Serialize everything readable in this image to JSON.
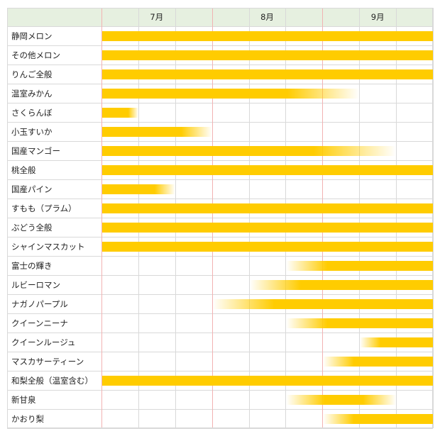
{
  "chart_data": {
    "type": "gantt",
    "title": "",
    "months": [
      "7月",
      "8月",
      "9月"
    ],
    "x_range_thirds": [
      0,
      9
    ],
    "bar_color": "#ffcc00",
    "header_color": "#e6f0e0",
    "grid_color": "#d9d9d9",
    "month_line_color": "#f2b3b3",
    "items": [
      {
        "name": "静岡メロン",
        "start": 0,
        "end": 9,
        "fade": "none"
      },
      {
        "name": "その他メロン",
        "start": 0,
        "end": 9,
        "fade": "none"
      },
      {
        "name": "りんご全般",
        "start": 0,
        "end": 9,
        "fade": "none"
      },
      {
        "name": "温室みかん",
        "start": 0,
        "end": 7,
        "fade": "end"
      },
      {
        "name": "さくらんぼ",
        "start": 0,
        "end": 1,
        "fade": "end"
      },
      {
        "name": "小玉すいか",
        "start": 0,
        "end": 3,
        "fade": "end"
      },
      {
        "name": "国産マンゴー",
        "start": 0,
        "end": 8,
        "fade": "end"
      },
      {
        "name": "桃全般",
        "start": 0,
        "end": 9,
        "fade": "none"
      },
      {
        "name": "国産パイン",
        "start": 0,
        "end": 2,
        "fade": "end"
      },
      {
        "name": "すもも（プラム）",
        "start": 0,
        "end": 9,
        "fade": "none"
      },
      {
        "name": "ぶどう全般",
        "start": 0,
        "end": 9,
        "fade": "none"
      },
      {
        "name": "シャインマスカット",
        "start": 0,
        "end": 9,
        "fade": "none"
      },
      {
        "name": "富士の輝き",
        "start": 5,
        "end": 9,
        "fade": "start"
      },
      {
        "name": "ルビーロマン",
        "start": 4,
        "end": 9,
        "fade": "start"
      },
      {
        "name": "ナガノパープル",
        "start": 3,
        "end": 9,
        "fade": "start"
      },
      {
        "name": "クイーンニーナ",
        "start": 5,
        "end": 9,
        "fade": "start"
      },
      {
        "name": "クイーンルージュ",
        "start": 7,
        "end": 9,
        "fade": "start"
      },
      {
        "name": "マスカサーティーン",
        "start": 6,
        "end": 9,
        "fade": "start"
      },
      {
        "name": "和梨全般（温室含む）",
        "start": 0,
        "end": 9,
        "fade": "none"
      },
      {
        "name": "新甘泉",
        "start": 5,
        "end": 8,
        "fade": "both"
      },
      {
        "name": "かおり梨",
        "start": 6,
        "end": 9,
        "fade": "start"
      }
    ]
  }
}
